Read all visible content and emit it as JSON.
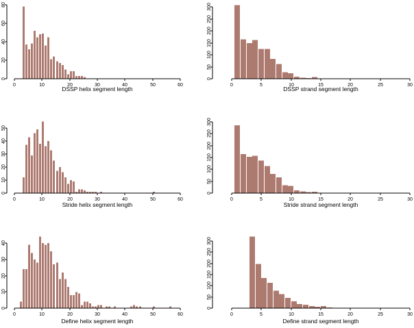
{
  "colors": {
    "bar_fill": "#ad7a70",
    "axis": "#000000",
    "background": "#ffffff"
  },
  "chart_data": [
    {
      "type": "bar",
      "id": "dssp-helix",
      "position": "top-left",
      "xlabel": "DSSP helix segment length",
      "xlim": [
        0,
        60
      ],
      "ylim": [
        0,
        80
      ],
      "xticks": [
        0,
        10,
        20,
        30,
        40,
        50,
        60
      ],
      "yticks": [
        0,
        20,
        40,
        60,
        80
      ],
      "bin_width": 1,
      "bin_start": 3,
      "values": [
        78,
        37,
        32,
        38,
        52,
        45,
        48,
        49,
        36,
        45,
        21,
        24,
        19,
        17,
        15,
        10,
        5,
        8,
        8,
        3,
        3,
        3,
        2
      ],
      "outlier_bins": []
    },
    {
      "type": "bar",
      "id": "dssp-strand",
      "position": "top-right",
      "xlabel": "DSSP strand segment length",
      "xlim": [
        0,
        30
      ],
      "ylim": [
        0,
        310
      ],
      "xticks": [
        0,
        5,
        10,
        15,
        20,
        25,
        30
      ],
      "yticks": [
        0,
        50,
        100,
        150,
        200,
        250,
        300
      ],
      "bin_width": 1,
      "bin_start": 0.5,
      "values": [
        307,
        165,
        148,
        162,
        124,
        124,
        83,
        62,
        27,
        23,
        8,
        5,
        3,
        7
      ],
      "outlier_bins": []
    },
    {
      "type": "bar",
      "id": "stride-helix",
      "position": "middle-left",
      "xlabel": "Stride helix segment length",
      "xlim": [
        0,
        60
      ],
      "ylim": [
        0,
        56
      ],
      "xticks": [
        0,
        10,
        20,
        30,
        40,
        50,
        60
      ],
      "yticks": [
        0,
        10,
        20,
        30,
        40,
        50
      ],
      "bin_width": 1,
      "bin_start": 3,
      "values": [
        12,
        37,
        43,
        29,
        46,
        49,
        38,
        55,
        36,
        40,
        33,
        25,
        17,
        20,
        16,
        12,
        7,
        10,
        9,
        1,
        3,
        3,
        2,
        1,
        1,
        1,
        1,
        0,
        1
      ],
      "outlier_bins": [
        {
          "x": 50,
          "v": 1
        }
      ]
    },
    {
      "type": "bar",
      "id": "stride-strand",
      "position": "middle-right",
      "xlabel": "Stride strand segment length",
      "xlim": [
        0,
        30
      ],
      "ylim": [
        0,
        300
      ],
      "xticks": [
        0,
        5,
        10,
        15,
        20,
        25,
        30
      ],
      "yticks": [
        0,
        50,
        100,
        150,
        200,
        250,
        300
      ],
      "bin_width": 1,
      "bin_start": 0.5,
      "values": [
        285,
        164,
        153,
        157,
        137,
        114,
        81,
        67,
        33,
        31,
        12,
        7,
        4,
        6
      ],
      "outlier_bins": []
    },
    {
      "type": "bar",
      "id": "define-helix",
      "position": "bottom-left",
      "xlabel": "Define helix segment length",
      "xlim": [
        0,
        60
      ],
      "ylim": [
        0,
        45
      ],
      "xticks": [
        0,
        10,
        20,
        30,
        40,
        50,
        60
      ],
      "yticks": [
        0,
        10,
        20,
        30,
        40
      ],
      "bin_width": 1,
      "bin_start": 2,
      "values": [
        4,
        24,
        24,
        39,
        34,
        30,
        28,
        44,
        40,
        39,
        40,
        35,
        27,
        28,
        18,
        22,
        18,
        13,
        8,
        8,
        10,
        9,
        2,
        4,
        4,
        3,
        1,
        1,
        2,
        2,
        0,
        1,
        1,
        0,
        1
      ],
      "outlier_bins": [
        {
          "x": 42,
          "v": 1
        },
        {
          "x": 43,
          "v": 2
        },
        {
          "x": 44,
          "v": 1
        },
        {
          "x": 45,
          "v": 1
        },
        {
          "x": 50,
          "v": 1
        },
        {
          "x": 56,
          "v": 1
        }
      ]
    },
    {
      "type": "bar",
      "id": "define-strand",
      "position": "bottom-right",
      "xlabel": "Define strand segment length",
      "xlim": [
        0,
        30
      ],
      "ylim": [
        0,
        325
      ],
      "xticks": [
        0,
        5,
        10,
        15,
        20,
        25,
        30
      ],
      "yticks": [
        0,
        50,
        100,
        150,
        200,
        250,
        300
      ],
      "bin_width": 1,
      "bin_start": 3,
      "values": [
        320,
        198,
        134,
        114,
        78,
        63,
        46,
        30,
        18,
        15,
        9,
        6,
        9,
        3
      ],
      "outlier_bins": []
    }
  ]
}
